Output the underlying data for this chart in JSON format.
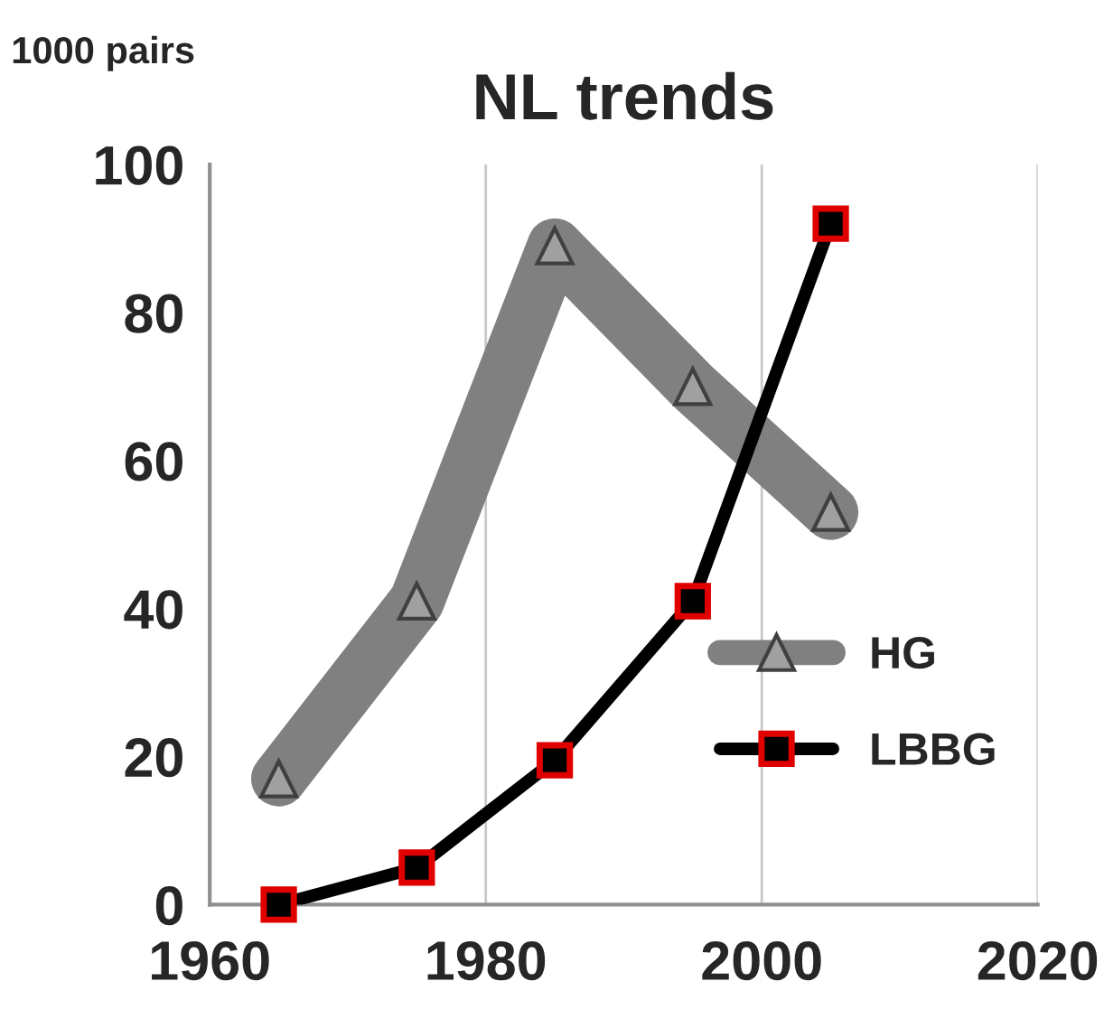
{
  "chart_data": {
    "type": "line",
    "title": "NL trends",
    "ylabel": "1000 pairs",
    "x": [
      1965,
      1975,
      1985,
      1995,
      2005
    ],
    "series": [
      {
        "name": "HG",
        "color": "#808080",
        "marker": "triangle",
        "values": [
          17,
          41,
          89,
          70,
          53
        ]
      },
      {
        "name": "LBBG",
        "color": "#000000",
        "marker": "square",
        "values": [
          0,
          5,
          19.5,
          41,
          92
        ]
      }
    ],
    "xlim": [
      1960,
      2020
    ],
    "xticks": [
      1960,
      1980,
      2000,
      2020
    ],
    "ylim": [
      0,
      100
    ],
    "yticks": [
      0,
      20,
      40,
      60,
      80,
      100
    ],
    "grid": "x",
    "legend": "right"
  }
}
